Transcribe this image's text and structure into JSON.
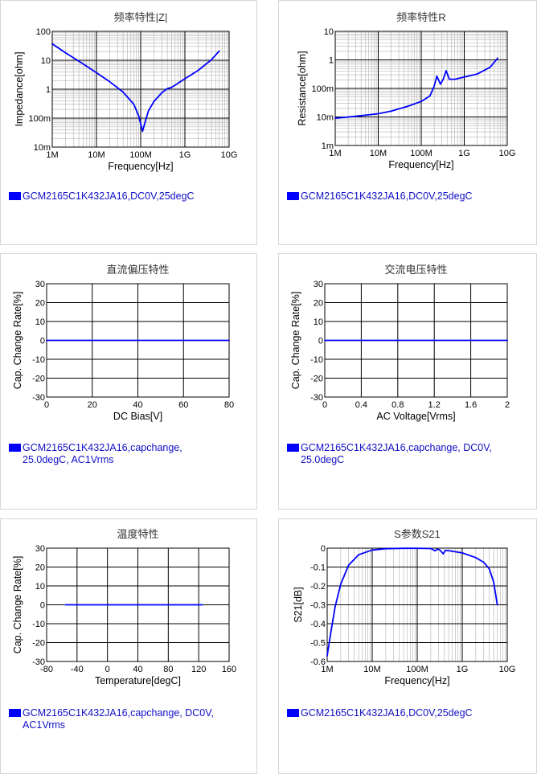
{
  "colors": {
    "series": "#0000ff",
    "legend_text": "#1010c8",
    "grid_major": "#000000",
    "grid_minor": "#b0b0b0"
  },
  "charts": [
    {
      "title": "频率特性|Z|",
      "xlabel": "Frequency[Hz]",
      "ylabel": "Impedance[ohm]",
      "legend": [
        "GCM2165C1K432JA16,DC0V,25degC"
      ]
    },
    {
      "title": "频率特性R",
      "xlabel": "Frequency[Hz]",
      "ylabel": "Resistance[ohm]",
      "legend": [
        "GCM2165C1K432JA16,DC0V,25degC"
      ]
    },
    {
      "title": "直流偏压特性",
      "xlabel": "DC Bias[V]",
      "ylabel": "Cap. Change Rate[%]",
      "legend": [
        "GCM2165C1K432JA16,capchange,",
        "25.0degC, AC1Vrms"
      ]
    },
    {
      "title": "交流电压特性",
      "xlabel": "AC Voltage[Vrms]",
      "ylabel": "Cap. Change Rate[%]",
      "legend": [
        "GCM2165C1K432JA16,capchange, DC0V,",
        "25.0degC"
      ]
    },
    {
      "title": "温度特性",
      "xlabel": "Temperature[degC]",
      "ylabel": "Cap. Change Rate[%]",
      "legend": [
        "GCM2165C1K432JA16,capchange, DC0V,",
        "AC1Vrms"
      ]
    },
    {
      "title": "S参数S21",
      "xlabel": "Frequency[Hz]",
      "ylabel": "S21[dB]",
      "legend": [
        "GCM2165C1K432JA16,DC0V,25degC"
      ]
    }
  ],
  "chart_data": [
    {
      "type": "line",
      "title": "频率特性|Z|",
      "xlabel": "Frequency[Hz]",
      "ylabel": "Impedance[ohm]",
      "xscale": "log",
      "yscale": "log",
      "xlim": [
        1000000,
        10000000000
      ],
      "ylim": [
        0.01,
        100
      ],
      "xticks": [
        1000000,
        10000000,
        100000000,
        1000000000,
        10000000000
      ],
      "xtick_labels": [
        "1M",
        "10M",
        "100M",
        "1G",
        "10G"
      ],
      "yticks": [
        0.01,
        0.1,
        1,
        10,
        100
      ],
      "ytick_labels": [
        "10m",
        "100m",
        "1",
        "10",
        "100"
      ],
      "grid": true,
      "series": [
        {
          "name": "GCM2165C1K432JA16,DC0V,25degC",
          "x": [
            1000000,
            2000000,
            5000000,
            10000000,
            20000000,
            40000000,
            70000000,
            90000000,
            110000000,
            125000000,
            150000000,
            200000000,
            300000000,
            400000000,
            500000000,
            1000000000,
            2000000000,
            4000000000,
            6000000000
          ],
          "y": [
            37,
            18,
            7.5,
            3.7,
            1.8,
            0.8,
            0.3,
            0.12,
            0.035,
            0.07,
            0.18,
            0.38,
            0.75,
            1.05,
            1.15,
            2.3,
            4.5,
            10.5,
            21
          ]
        }
      ]
    },
    {
      "type": "line",
      "title": "频率特性R",
      "xlabel": "Frequency[Hz]",
      "ylabel": "Resistance[ohm]",
      "xscale": "log",
      "yscale": "log",
      "xlim": [
        1000000,
        10000000000
      ],
      "ylim": [
        0.001,
        10
      ],
      "xticks": [
        1000000,
        10000000,
        100000000,
        1000000000,
        10000000000
      ],
      "xtick_labels": [
        "1M",
        "10M",
        "100M",
        "1G",
        "10G"
      ],
      "yticks": [
        0.001,
        0.01,
        0.1,
        1,
        10
      ],
      "ytick_labels": [
        "1m",
        "10m",
        "100m",
        "1",
        "10"
      ],
      "grid": true,
      "series": [
        {
          "name": "GCM2165C1K432JA16,DC0V,25degC",
          "x": [
            1000000,
            3000000,
            10000000,
            20000000,
            50000000,
            100000000,
            160000000,
            200000000,
            230000000,
            280000000,
            330000000,
            380000000,
            450000000,
            600000000,
            1000000000,
            2000000000,
            4000000000,
            6000000000
          ],
          "y": [
            0.009,
            0.0105,
            0.013,
            0.016,
            0.024,
            0.035,
            0.055,
            0.12,
            0.27,
            0.14,
            0.22,
            0.42,
            0.21,
            0.21,
            0.25,
            0.32,
            0.55,
            1.15
          ]
        }
      ]
    },
    {
      "type": "line",
      "title": "直流偏压特性",
      "xlabel": "DC Bias[V]",
      "ylabel": "Cap. Change Rate[%]",
      "xlim": [
        0,
        80
      ],
      "ylim": [
        -30,
        30
      ],
      "xticks": [
        0,
        20,
        40,
        60,
        80
      ],
      "yticks": [
        -30,
        -20,
        -10,
        0,
        10,
        20,
        30
      ],
      "grid": true,
      "series": [
        {
          "name": "GCM2165C1K432JA16,capchange, 25.0degC, AC1Vrms",
          "x": [
            0,
            80
          ],
          "y": [
            0,
            0
          ]
        }
      ]
    },
    {
      "type": "line",
      "title": "交流电压特性",
      "xlabel": "AC Voltage[Vrms]",
      "ylabel": "Cap. Change Rate[%]",
      "xlim": [
        0,
        2
      ],
      "ylim": [
        -30,
        30
      ],
      "xticks": [
        0,
        0.4,
        0.8,
        1.2,
        1.6,
        2
      ],
      "yticks": [
        -30,
        -20,
        -10,
        0,
        10,
        20,
        30
      ],
      "grid": true,
      "series": [
        {
          "name": "GCM2165C1K432JA16,capchange, DC0V, 25.0degC",
          "x": [
            0,
            2
          ],
          "y": [
            0,
            0
          ]
        }
      ]
    },
    {
      "type": "line",
      "title": "温度特性",
      "xlabel": "Temperature[degC]",
      "ylabel": "Cap. Change Rate[%]",
      "xlim": [
        -80,
        160
      ],
      "ylim": [
        -30,
        30
      ],
      "xticks": [
        -80,
        -40,
        0,
        40,
        80,
        120,
        160
      ],
      "yticks": [
        -30,
        -20,
        -10,
        0,
        10,
        20,
        30
      ],
      "grid": true,
      "series": [
        {
          "name": "GCM2165C1K432JA16,capchange, DC0V, AC1Vrms",
          "x": [
            -55,
            125
          ],
          "y": [
            0,
            0
          ]
        }
      ]
    },
    {
      "type": "line",
      "title": "S参数S21",
      "xlabel": "Frequency[Hz]",
      "ylabel": "S21[dB]",
      "xscale": "log",
      "xlim": [
        1000000,
        10000000000
      ],
      "ylim": [
        -0.6,
        0
      ],
      "xticks": [
        1000000,
        10000000,
        100000000,
        1000000000,
        10000000000
      ],
      "xtick_labels": [
        "1M",
        "10M",
        "100M",
        "1G",
        "10G"
      ],
      "yticks": [
        -0.6,
        -0.5,
        -0.4,
        -0.3,
        -0.2,
        -0.1,
        0
      ],
      "ytick_labels": [
        "-0.6",
        "-0.5",
        "-0.4",
        "-0.3",
        "-0.2",
        "-0.1",
        "0"
      ],
      "grid": true,
      "series": [
        {
          "name": "GCM2165C1K432JA16,DC0V,25degC",
          "x": [
            1000000,
            1200000,
            1500000,
            2000000,
            3000000,
            5000000,
            10000000,
            20000000,
            50000000,
            100000000,
            200000000,
            250000000,
            280000000,
            320000000,
            380000000,
            420000000,
            500000000,
            1000000000,
            2000000000,
            3000000000,
            4000000000,
            5000000000,
            6000000000
          ],
          "y": [
            -0.57,
            -0.45,
            -0.31,
            -0.19,
            -0.09,
            -0.035,
            -0.01,
            -0.003,
            -0.001,
            -0.001,
            -0.002,
            -0.014,
            -0.005,
            -0.01,
            -0.03,
            -0.012,
            -0.013,
            -0.025,
            -0.05,
            -0.075,
            -0.11,
            -0.18,
            -0.3
          ]
        }
      ]
    }
  ]
}
